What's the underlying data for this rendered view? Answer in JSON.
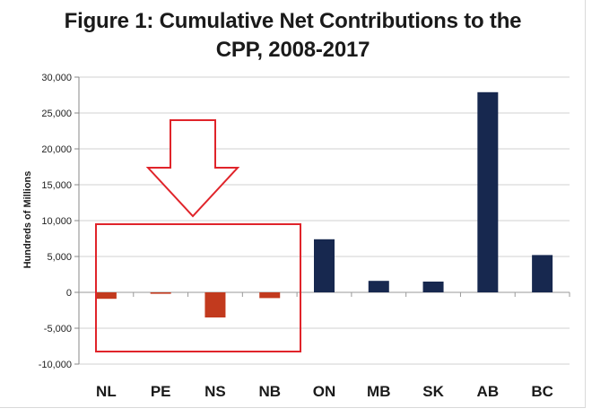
{
  "chart_data": {
    "type": "bar",
    "title_line1": "Figure 1: Cumulative Net Contributions to the",
    "title_line2": "CPP, 2008-2017",
    "xlabel": "",
    "ylabel": "Hundreds of Millions",
    "categories": [
      "NL",
      "PE",
      "NS",
      "NB",
      "ON",
      "MB",
      "SK",
      "AB",
      "BC"
    ],
    "values": [
      -900,
      -200,
      -3500,
      -800,
      7400,
      1600,
      1500,
      27900,
      5200
    ],
    "ylim": [
      -10000,
      30000
    ],
    "yticks": [
      30000,
      25000,
      20000,
      15000,
      10000,
      5000,
      0,
      -5000,
      -10000
    ],
    "ytick_labels": [
      "30,000",
      "25,000",
      "20,000",
      "15,000",
      "10,000",
      "5,000",
      "0",
      "-5,000",
      "-10,000"
    ],
    "grid": true,
    "colors": {
      "positive": "#17284f",
      "negative": "#c23a1e",
      "highlight": "#e0242a"
    },
    "annotations": [
      {
        "type": "highlight-box",
        "categories": [
          "NL",
          "PE",
          "NS",
          "NB"
        ]
      },
      {
        "type": "down-arrow",
        "target": "highlight-box"
      }
    ]
  }
}
